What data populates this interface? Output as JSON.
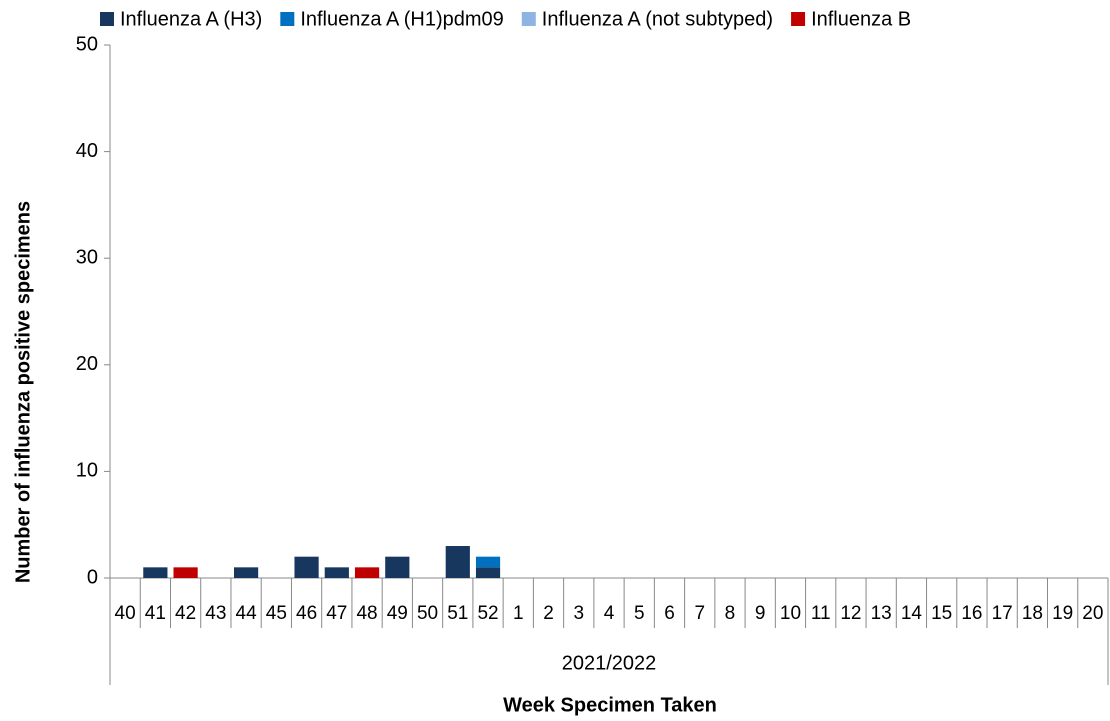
{
  "chart_data": {
    "type": "stacked_bar",
    "y_label": "Number of influenza positive specimens",
    "x_label": "Week Specimen Taken",
    "x_group_label": "2021/2022",
    "categories": [
      "40",
      "41",
      "42",
      "43",
      "44",
      "45",
      "46",
      "47",
      "48",
      "49",
      "50",
      "51",
      "52",
      "1",
      "2",
      "3",
      "4",
      "5",
      "6",
      "7",
      "8",
      "9",
      "10",
      "11",
      "12",
      "13",
      "14",
      "15",
      "16",
      "17",
      "18",
      "19",
      "20"
    ],
    "series": [
      {
        "name": "Influenza A (H3)",
        "color": "#17375e",
        "values": [
          0,
          1,
          0,
          0,
          1,
          0,
          2,
          1,
          0,
          2,
          0,
          3,
          1,
          0,
          0,
          0,
          0,
          0,
          0,
          0,
          0,
          0,
          0,
          0,
          0,
          0,
          0,
          0,
          0,
          0,
          0,
          0,
          0
        ]
      },
      {
        "name": "Influenza A (H1)pdm09",
        "color": "#0070c0",
        "values": [
          0,
          0,
          0,
          0,
          0,
          0,
          0,
          0,
          0,
          0,
          0,
          0,
          1,
          0,
          0,
          0,
          0,
          0,
          0,
          0,
          0,
          0,
          0,
          0,
          0,
          0,
          0,
          0,
          0,
          0,
          0,
          0,
          0
        ]
      },
      {
        "name": "Influenza A (not subtyped)",
        "color": "#8db4e2",
        "values": [
          0,
          0,
          0,
          0,
          0,
          0,
          0,
          0,
          0,
          0,
          0,
          0,
          0,
          0,
          0,
          0,
          0,
          0,
          0,
          0,
          0,
          0,
          0,
          0,
          0,
          0,
          0,
          0,
          0,
          0,
          0,
          0,
          0
        ]
      },
      {
        "name": "Influenza B",
        "color": "#c00000",
        "values": [
          0,
          0,
          1,
          0,
          0,
          0,
          0,
          0,
          1,
          0,
          0,
          0,
          0,
          0,
          0,
          0,
          0,
          0,
          0,
          0,
          0,
          0,
          0,
          0,
          0,
          0,
          0,
          0,
          0,
          0,
          0,
          0,
          0
        ]
      }
    ],
    "ylim": [
      0,
      50
    ],
    "yticks": [
      0,
      10,
      20,
      30,
      40,
      50
    ],
    "grid": false,
    "legend": "top"
  }
}
